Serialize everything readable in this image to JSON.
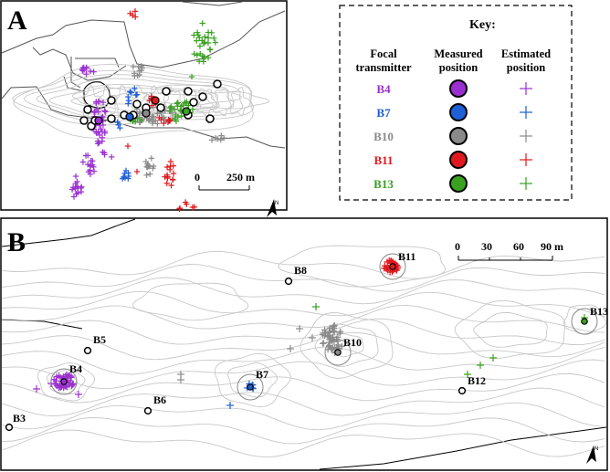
{
  "panel_a": {
    "letter": "A",
    "scale_label_start": "0",
    "scale_label_end": "250 m",
    "north_label": "N"
  },
  "key": {
    "title": "Key:",
    "col_focal": [
      "Focal",
      "transmitter"
    ],
    "col_measured": [
      "Measured",
      "position"
    ],
    "col_estimated": [
      "Estimated",
      "position"
    ],
    "rows": [
      {
        "id": "B4",
        "color": "#9b30d0"
      },
      {
        "id": "B7",
        "color": "#1f5fd6"
      },
      {
        "id": "B10",
        "color": "#8a8a8a"
      },
      {
        "id": "B11",
        "color": "#e0191e"
      },
      {
        "id": "B13",
        "color": "#3aa020"
      }
    ]
  },
  "panel_b": {
    "letter": "B",
    "scale_ticks": [
      "0",
      "30",
      "60",
      "90 m"
    ],
    "north_label": "N",
    "stations": [
      "B3",
      "B4",
      "B5",
      "B6",
      "B7",
      "B8",
      "B10",
      "B11",
      "B12",
      "B13"
    ]
  },
  "colors": {
    "B4": "#9b30d0",
    "B7": "#1f5fd6",
    "B10": "#8a8a8a",
    "B11": "#e0191e",
    "B13": "#3aa020",
    "contour": "#c8c8c8"
  }
}
